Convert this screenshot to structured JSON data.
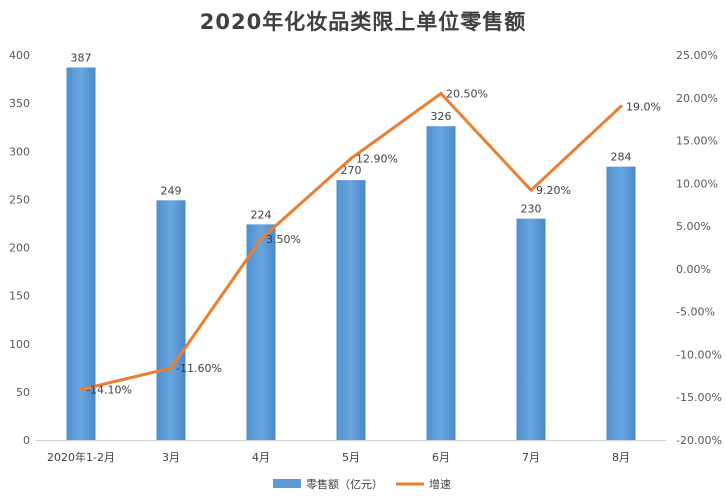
{
  "chart_data": {
    "type": "bar",
    "title": "2020年化妆品类限上单位零售额",
    "categories": [
      "2020年1-2月",
      "3月",
      "4月",
      "5月",
      "6月",
      "7月",
      "8月"
    ],
    "series": [
      {
        "name": "零售额（亿元）",
        "type": "bar",
        "axis": "left",
        "color": "#5b9bd5",
        "values": [
          387,
          249,
          224,
          270,
          326,
          230,
          284
        ],
        "labels": [
          "387",
          "249",
          "224",
          "270",
          "326",
          "230",
          "284"
        ]
      },
      {
        "name": "增速",
        "type": "line",
        "axis": "right",
        "color": "#ed7d31",
        "values": [
          -14.1,
          -11.6,
          3.5,
          12.9,
          20.5,
          9.2,
          19.0
        ],
        "labels": [
          "-14.10%",
          "-11.60%",
          "3.50%",
          "12.90%",
          "20.50%",
          "9.20%",
          "19.0%"
        ]
      }
    ],
    "y_left": {
      "ylim": [
        0,
        400
      ],
      "ticks": [
        "0",
        "50",
        "100",
        "150",
        "200",
        "250",
        "300",
        "350",
        "400"
      ]
    },
    "y_right": {
      "ylim": [
        -20,
        25
      ],
      "ticks": [
        "-20.00%",
        "-15.00%",
        "-10.00%",
        "-5.00%",
        "0.00%",
        "5.00%",
        "10.00%",
        "15.00%",
        "20.00%",
        "25.00%"
      ]
    },
    "grid": false,
    "legend_position": "bottom"
  }
}
